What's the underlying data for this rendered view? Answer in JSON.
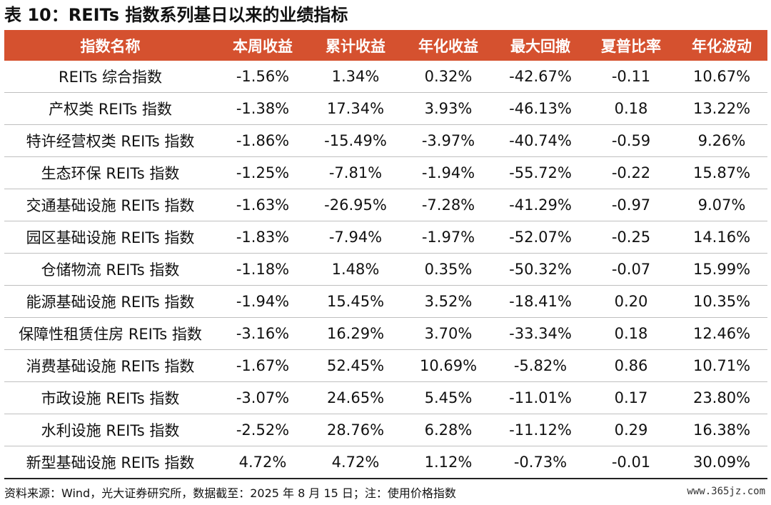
{
  "title": "表 10：REITs 指数系列基日以来的业绩指标",
  "headers": [
    "指数名称",
    "本周收益",
    "累计收益",
    "年化收益",
    "最大回撤",
    "夏普比率",
    "年化波动"
  ],
  "rows": [
    [
      "REITs 综合指数",
      "-1.56%",
      "1.34%",
      "0.32%",
      "-42.67%",
      "-0.11",
      "10.67%"
    ],
    [
      "产权类 REITs 指数",
      "-1.38%",
      "17.34%",
      "3.93%",
      "-46.13%",
      "0.18",
      "13.22%"
    ],
    [
      "特许经营权类 REITs 指数",
      "-1.86%",
      "-15.49%",
      "-3.97%",
      "-40.74%",
      "-0.59",
      "9.26%"
    ],
    [
      "生态环保 REITs 指数",
      "-1.25%",
      "-7.81%",
      "-1.94%",
      "-55.72%",
      "-0.22",
      "15.87%"
    ],
    [
      "交通基础设施 REITs 指数",
      "-1.63%",
      "-26.95%",
      "-7.28%",
      "-41.29%",
      "-0.97",
      "9.07%"
    ],
    [
      "园区基础设施 REITs 指数",
      "-1.83%",
      "-7.94%",
      "-1.97%",
      "-52.07%",
      "-0.25",
      "14.16%"
    ],
    [
      "仓储物流 REITs 指数",
      "-1.18%",
      "1.48%",
      "0.35%",
      "-50.32%",
      "-0.07",
      "15.99%"
    ],
    [
      "能源基础设施 REITs 指数",
      "-1.94%",
      "15.45%",
      "3.52%",
      "-18.41%",
      "0.20",
      "10.35%"
    ],
    [
      "保障性租赁住房 REITs 指数",
      "-3.16%",
      "16.29%",
      "3.70%",
      "-33.34%",
      "0.18",
      "12.46%"
    ],
    [
      "消费基础设施 REITs 指数",
      "-1.67%",
      "52.45%",
      "10.69%",
      "-5.82%",
      "0.86",
      "10.71%"
    ],
    [
      "市政设施 REITs 指数",
      "-3.07%",
      "24.65%",
      "5.45%",
      "-11.01%",
      "0.17",
      "23.80%"
    ],
    [
      "水利设施 REITs 指数",
      "-2.52%",
      "28.76%",
      "6.28%",
      "-11.12%",
      "0.29",
      "16.38%"
    ],
    [
      "新型基础设施 REITs 指数",
      "4.72%",
      "4.72%",
      "1.12%",
      "-0.73%",
      "-0.01",
      "30.09%"
    ]
  ],
  "footer": "资料来源：Wind，光大证券研究所，数据截至：2025 年 8 月 15 日；注：使用价格指数",
  "watermark": "www.365jz.com",
  "colors": {
    "header_bg": "#d5512f",
    "header_text": "#ffffff",
    "row_border": "#bfbfbf"
  }
}
